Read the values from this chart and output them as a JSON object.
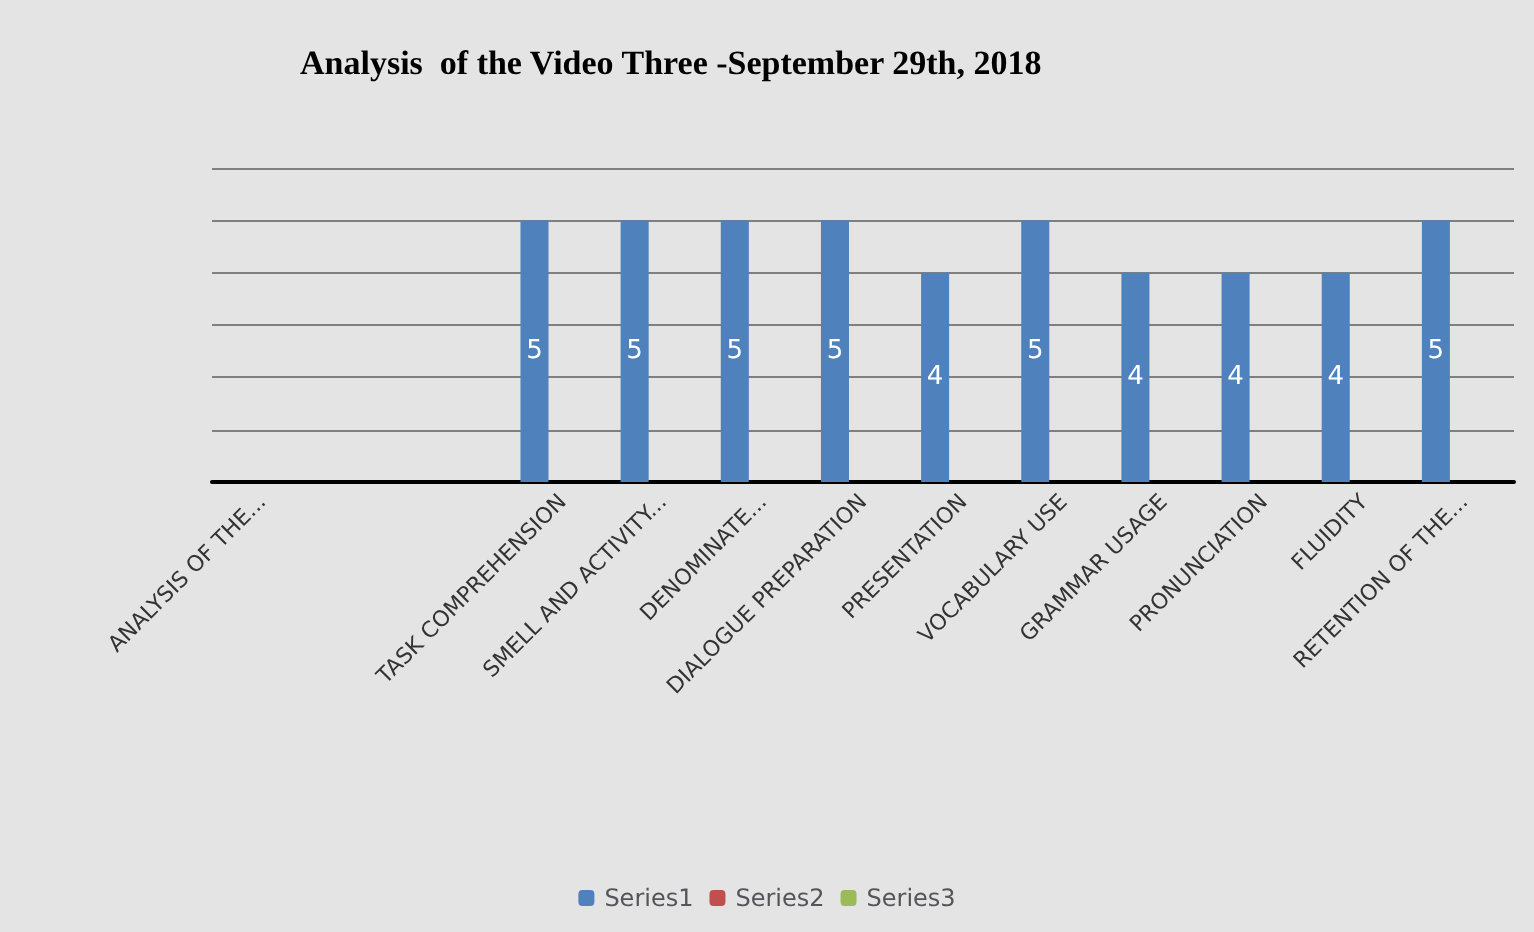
{
  "chart_data": {
    "type": "bar",
    "title": "Analysis  of the Video Three -September 29th, 2018",
    "categories": [
      "ANALYSIS OF THE...",
      null,
      null,
      "TASK COMPREHENSION",
      "SMELL AND ACTIVITY...",
      "DENOMINATE...",
      "DIALOGUE PREPARATION",
      "PRESENTATION",
      "VOCABULARY USE",
      "GRAMMAR USAGE",
      "PRONUNCIATION",
      "FLUIDITY",
      "RETENTION OF THE..."
    ],
    "series": [
      {
        "name": "Series1",
        "color": "#4f81bd",
        "values": [
          null,
          null,
          null,
          5,
          5,
          5,
          5,
          4,
          5,
          4,
          4,
          4,
          5
        ]
      },
      {
        "name": "Series2",
        "color": "#c0504d",
        "values": [
          null,
          null,
          null,
          null,
          null,
          null,
          null,
          null,
          null,
          null,
          null,
          null,
          null
        ]
      },
      {
        "name": "Series3",
        "color": "#9bbb59",
        "values": [
          null,
          null,
          null,
          null,
          null,
          null,
          null,
          null,
          null,
          null,
          null,
          null,
          null
        ]
      }
    ],
    "ylim": [
      0,
      6
    ],
    "yticks": [
      {
        "value": 0,
        "label": null
      },
      {
        "value": 1,
        "label": null
      },
      {
        "value": 2,
        "label": null
      },
      {
        "value": 3,
        "label": null
      },
      {
        "value": 4,
        "label": null
      },
      {
        "value": 5,
        "label": null
      },
      {
        "value": 6,
        "label": null
      }
    ],
    "tick_labels": "x",
    "grid": true,
    "legend": "bottom",
    "data_labels": true
  }
}
